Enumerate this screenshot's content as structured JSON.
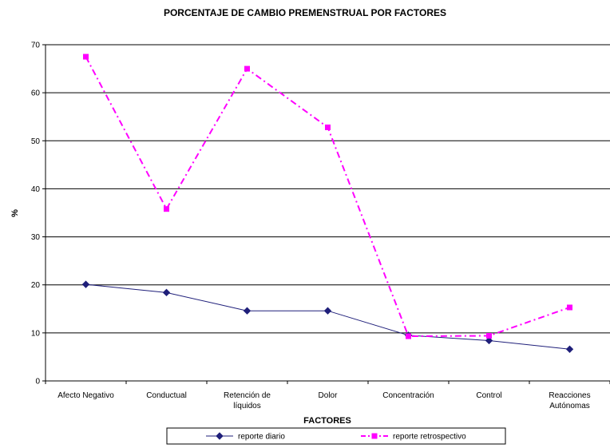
{
  "chart_data": {
    "type": "line",
    "title": "PORCENTAJE DE CAMBIO PREMENSTRUAL POR FACTORES",
    "xlabel": "FACTORES",
    "ylabel": "%",
    "ylim": [
      0,
      70
    ],
    "yticks": [
      0,
      10,
      20,
      30,
      40,
      50,
      60,
      70
    ],
    "grid": "horizontal",
    "legend_position": "bottom",
    "categories": [
      [
        "Afecto Negativo"
      ],
      [
        "Conductual"
      ],
      [
        "Retención de",
        "líquidos"
      ],
      [
        "Dolor"
      ],
      [
        "Concentración"
      ],
      [
        "Control"
      ],
      [
        "Reacciones",
        "Autónomas"
      ]
    ],
    "series": [
      {
        "name": "reporte diario",
        "values": [
          20.1,
          18.4,
          14.6,
          14.6,
          9.5,
          8.4,
          6.6
        ],
        "color": "#1f1f7a",
        "marker": "diamond",
        "line_style": "solid"
      },
      {
        "name": "reporte retrospectivo",
        "values": [
          67.5,
          35.8,
          65.0,
          52.8,
          9.3,
          9.4,
          15.3
        ],
        "color": "#ff00ff",
        "marker": "square",
        "line_style": "dash-dot"
      }
    ]
  }
}
